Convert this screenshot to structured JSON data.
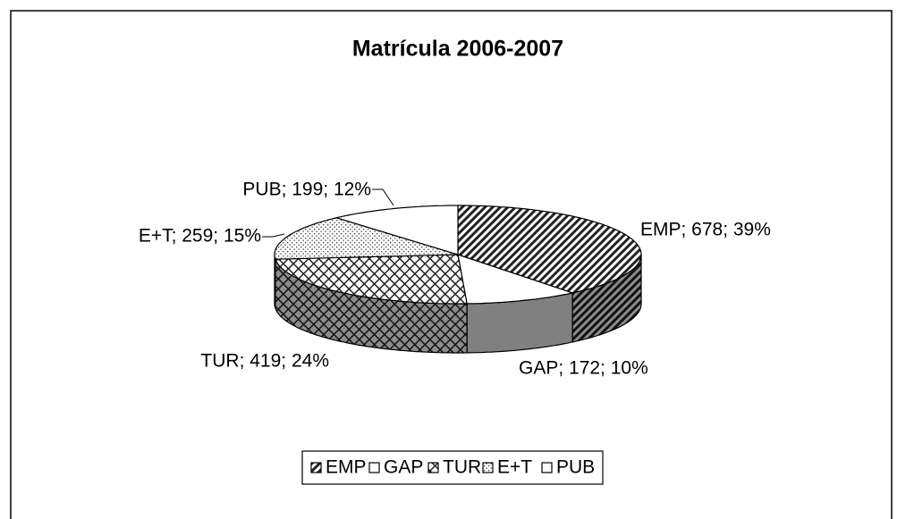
{
  "chart_data": {
    "type": "pie",
    "title": "Matrícula 2006-2007",
    "categories": [
      "EMP",
      "GAP",
      "TUR",
      "E+T",
      "PUB"
    ],
    "values": [
      678,
      172,
      419,
      259,
      199
    ],
    "value_labels": [
      "EMP; 678; 39%",
      "GAP; 172; 10%",
      "TUR; 419; 24%",
      "E+T; 259; 15%",
      "PUB; 199; 12%"
    ],
    "legend": "bottom"
  }
}
